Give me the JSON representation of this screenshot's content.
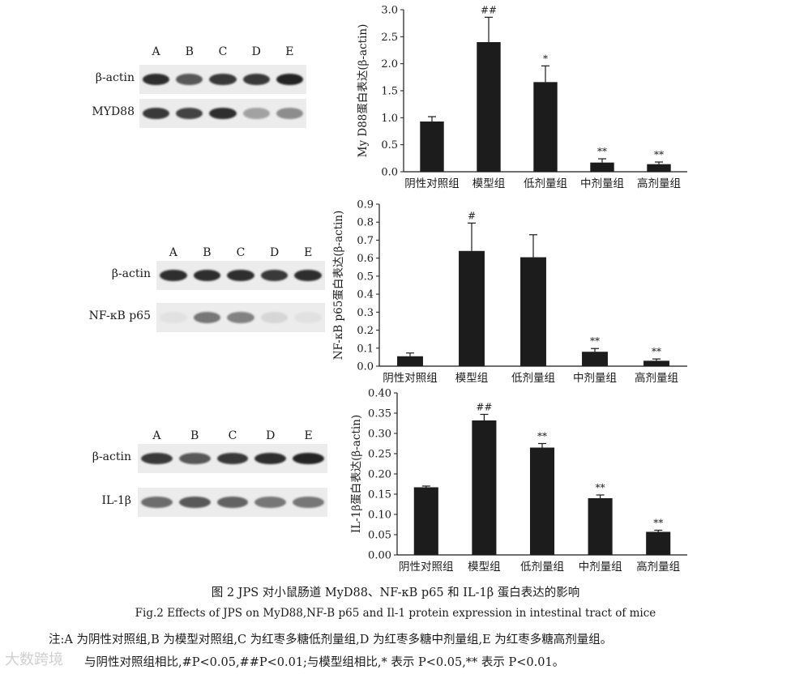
{
  "blots": [
    {
      "lanes": [
        "A",
        "B",
        "C",
        "D",
        "E"
      ],
      "rows": [
        {
          "label": "β-actin",
          "intensities": [
            0.9,
            0.7,
            0.85,
            0.85,
            0.95
          ]
        },
        {
          "label": "MYD88",
          "intensities": [
            0.85,
            0.8,
            0.9,
            0.35,
            0.45
          ]
        }
      ]
    },
    {
      "lanes": [
        "A",
        "B",
        "C",
        "D",
        "E"
      ],
      "rows": [
        {
          "label": "β-actin",
          "intensities": [
            0.9,
            0.9,
            0.9,
            0.85,
            0.9
          ]
        },
        {
          "label": "NF-κB p65",
          "intensities": [
            0.05,
            0.55,
            0.5,
            0.1,
            0.05
          ]
        }
      ]
    },
    {
      "lanes": [
        "A",
        "B",
        "C",
        "D",
        "E"
      ],
      "rows": [
        {
          "label": "β-actin",
          "intensities": [
            0.85,
            0.7,
            0.85,
            0.9,
            0.95
          ]
        },
        {
          "label": "IL-1β",
          "intensities": [
            0.6,
            0.7,
            0.65,
            0.55,
            0.55
          ]
        }
      ]
    }
  ],
  "chart_data": [
    {
      "type": "bar",
      "categories": [
        "阴性对照组",
        "模型组",
        "低剂量组",
        "中剂量组",
        "高剂量组"
      ],
      "values": [
        0.93,
        2.4,
        1.66,
        0.17,
        0.14
      ],
      "errors": [
        0.09,
        0.46,
        0.3,
        0.07,
        0.04
      ],
      "annotations": [
        "",
        "##",
        "*",
        "**",
        "**"
      ],
      "ylabel": "My D88蛋白表达(β-actin)",
      "ylim": [
        0,
        3.0
      ],
      "yticks": [
        "0.0",
        "0.5",
        "1.0",
        "1.5",
        "2.0",
        "2.5",
        "3.0"
      ],
      "grid": false
    },
    {
      "type": "bar",
      "categories": [
        "阴性对照组",
        "模型组",
        "低剂量组",
        "中剂量组",
        "高剂量组"
      ],
      "values": [
        0.055,
        0.64,
        0.605,
        0.08,
        0.03
      ],
      "errors": [
        0.018,
        0.155,
        0.125,
        0.018,
        0.01
      ],
      "annotations": [
        "",
        "#",
        "",
        "**",
        "**"
      ],
      "ylabel": "NF-κB p65蛋白表达(β-actin)",
      "ylim": [
        0,
        0.9
      ],
      "yticks": [
        "0.0",
        "0.1",
        "0.2",
        "0.3",
        "0.4",
        "0.5",
        "0.6",
        "0.7",
        "0.8",
        "0.9"
      ],
      "grid": false
    },
    {
      "type": "bar",
      "categories": [
        "阴性对照组",
        "模型组",
        "低剂量组",
        "中剂量组",
        "高剂量组"
      ],
      "values": [
        0.167,
        0.332,
        0.265,
        0.14,
        0.057
      ],
      "errors": [
        0.003,
        0.015,
        0.01,
        0.008,
        0.004
      ],
      "annotations": [
        "",
        "##",
        "**",
        "**",
        "**"
      ],
      "ylabel": "IL-1β蛋白表达(β-actin)",
      "ylim": [
        0,
        0.4
      ],
      "yticks": [
        "0.00",
        "0.05",
        "0.10",
        "0.15",
        "0.20",
        "0.25",
        "0.30",
        "0.35",
        "0.40"
      ],
      "grid": false
    }
  ],
  "caption_cn": "图 2 JPS 对小鼠肠道 MyD88、NF-κB p65 和 IL-1β 蛋白表达的影响",
  "caption_en": "Fig.2 Effects of JPS on MyD88,NF-B p65 and Il-1 protein expression in intestinal tract of mice",
  "note_line1": "注:A 为阴性对照组,B 为模型对照组,C 为红枣多糖低剂量组,D 为红枣多糖中剂量组,E 为红枣多糖高剂量组。",
  "note_line2": "与阴性对照组相比,#P<0.05,##P<0.01;与模型组相比,* 表示 P<0.05,** 表示 P<0.01。",
  "watermark": "大数跨境"
}
